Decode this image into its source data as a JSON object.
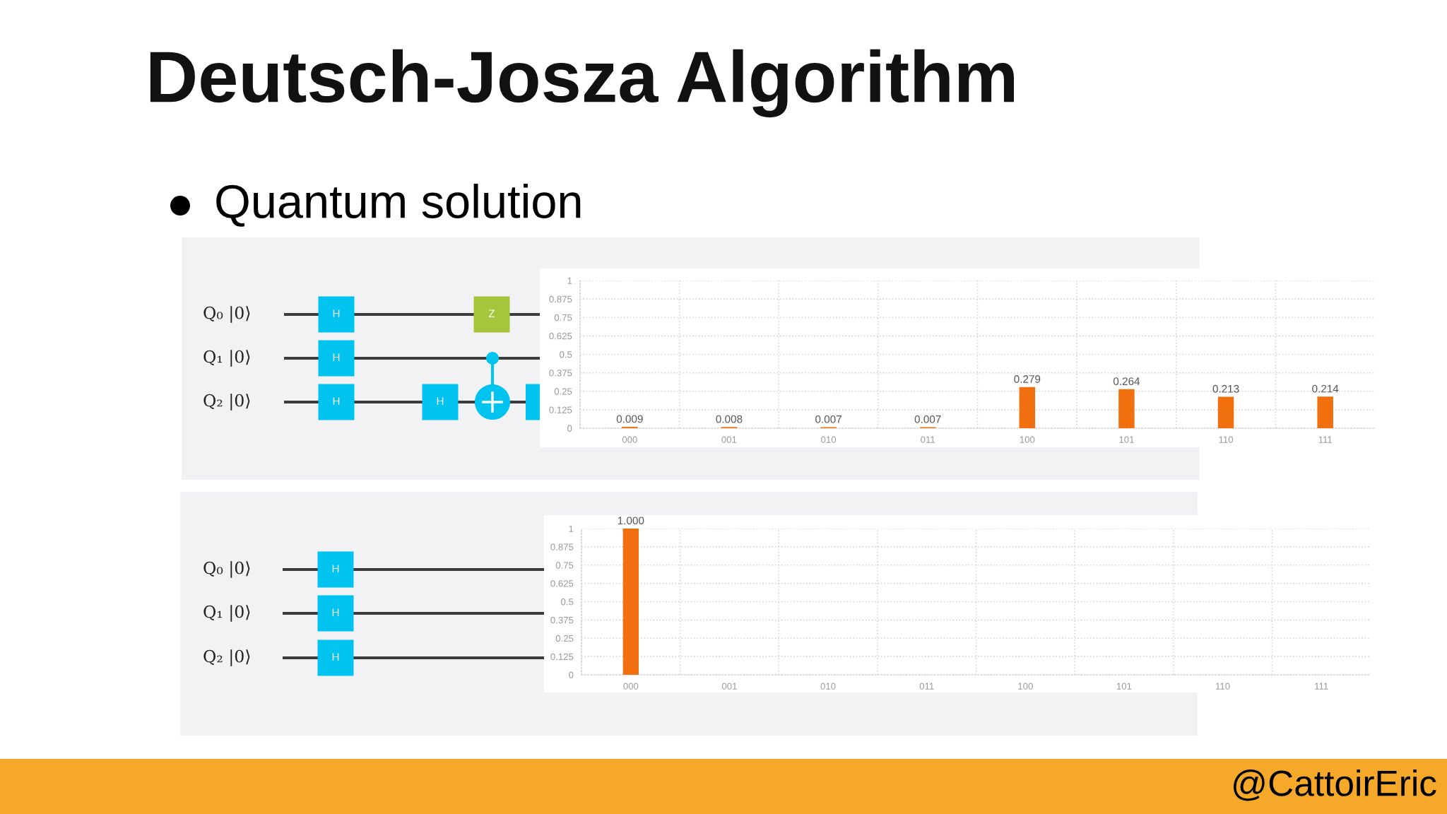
{
  "chart_data": [
    {
      "type": "other",
      "title": "Deutsch-Josza Algorithm",
      "subtitle": "Quantum solution"
    },
    {
      "type": "other",
      "annotations": [
        "Q₀ |0⟩",
        "H",
        "Z",
        "Q₁ |0⟩",
        "H",
        "Q₂ |0⟩",
        "H",
        "H"
      ]
    },
    {
      "type": "bar",
      "categories": [
        "000",
        "001",
        "010",
        "011",
        "100",
        "101",
        "110",
        "111"
      ],
      "values": [
        0.009,
        0.008,
        0.007,
        0.007,
        0.279,
        0.264,
        0.213,
        0.214
      ],
      "color": "#f07010",
      "ylim": [
        0,
        1
      ],
      "yticks": [
        0,
        0.125,
        0.25,
        0.375,
        0.5,
        0.625,
        0.75,
        0.875,
        1
      ],
      "grid": true,
      "data_labels": true
    },
    {
      "type": "other",
      "annotations": [
        "Q₀ |0⟩",
        "H",
        "Q₁ |0⟩",
        "H",
        "Q₂ |0⟩",
        "H"
      ]
    },
    {
      "type": "bar",
      "categories": [
        "000",
        "001",
        "010",
        "011",
        "100",
        "101",
        "110",
        "111"
      ],
      "values": [
        1,
        0,
        0,
        0,
        0,
        0,
        0,
        0
      ],
      "value_labels": [
        "1.000",
        null,
        null,
        null,
        null,
        null,
        null,
        null
      ],
      "color": "#f07010",
      "ylim": [
        0,
        1
      ],
      "yticks": [
        0,
        0.125,
        0.25,
        0.375,
        0.5,
        0.625,
        0.75,
        0.875,
        1
      ],
      "grid": true
    },
    {
      "type": "other",
      "annotations": [
        "@CattoirEric"
      ]
    }
  ]
}
